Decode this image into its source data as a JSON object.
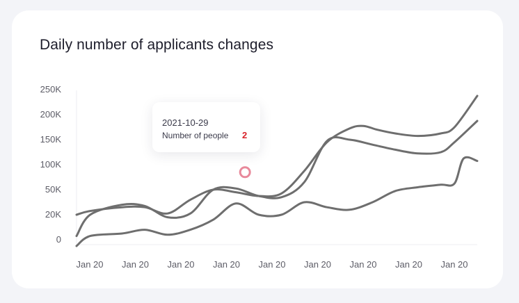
{
  "chart_data": {
    "type": "line",
    "title": "Daily number of applicants changes",
    "xlabel": "",
    "ylabel": "",
    "categories": [
      "Jan 20",
      "Jan 20",
      "Jan 20",
      "Jan 20",
      "Jan 20",
      "Jan 20",
      "Jan 20",
      "Jan 20",
      "Jan 20"
    ],
    "y_ticks": [
      "0",
      "20K",
      "50K",
      "100K",
      "150K",
      "200K",
      "250K"
    ],
    "y_tick_values": [
      0,
      1,
      2,
      3,
      4,
      5,
      6
    ],
    "ylim": [
      0,
      6
    ],
    "xlim": [
      0,
      8.8
    ],
    "grid": false,
    "line_color": "#6e6e6e",
    "series": [
      {
        "x": [
          0,
          0.3,
          1,
          1.5,
          2,
          2.5,
          3,
          3.5,
          4,
          4.5,
          5,
          5.5,
          6,
          6.5,
          7,
          7.5,
          8,
          8.3,
          8.8
        ],
        "values": [
          0.15,
          1.0,
          1.4,
          1.35,
          0.9,
          1.05,
          2.0,
          2.05,
          1.75,
          1.7,
          2.3,
          3.95,
          4.0,
          3.8,
          3.6,
          3.45,
          3.5,
          3.9,
          4.75
        ]
      },
      {
        "x": [
          0,
          0.3,
          1,
          1.5,
          2,
          2.5,
          3,
          3.5,
          4,
          4.5,
          5,
          5.5,
          6,
          6.3,
          6.6,
          7,
          7.5,
          8,
          8.3,
          8.8
        ],
        "values": [
          1.0,
          1.15,
          1.3,
          1.3,
          1.05,
          1.6,
          2.0,
          1.9,
          1.75,
          1.85,
          2.75,
          3.9,
          4.45,
          4.55,
          4.4,
          4.25,
          4.15,
          4.25,
          4.5,
          5.75
        ]
      },
      {
        "x": [
          0,
          0.3,
          1,
          1.5,
          2,
          2.5,
          3,
          3.5,
          4,
          4.5,
          5,
          5.5,
          6,
          6.5,
          7,
          7.5,
          8,
          8.3,
          8.5,
          8.8
        ],
        "values": [
          -0.25,
          0.15,
          0.25,
          0.4,
          0.2,
          0.4,
          0.8,
          1.45,
          1.0,
          1.0,
          1.5,
          1.3,
          1.2,
          1.5,
          1.95,
          2.1,
          2.2,
          2.25,
          3.25,
          3.15
        ]
      }
    ],
    "tooltip": {
      "date": "2021-10-29",
      "label": "Number of people",
      "value": "2",
      "marker_x": 3.7,
      "marker_y": 2.7,
      "marker_color": "#e8899b"
    }
  }
}
